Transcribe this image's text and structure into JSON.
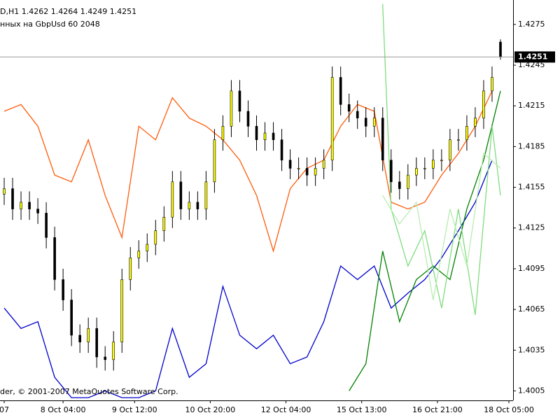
{
  "chart_data": {
    "type": "candlestick",
    "info_line": "D,H1  1.4262 1.4264 1.4249 1.4251",
    "indicator_line": "нных на GbpUsd 60 2048",
    "copyright": "der, © 2001-2007 MetaQuotes Software Corp.",
    "current_price": 1.4251,
    "candle_up": "#ffff00",
    "candle_down": "#000000",
    "wick_color": "#000000",
    "xlim": [
      -0.5,
      60.5
    ],
    "xticks": [
      {
        "value": 0,
        "label": "07"
      },
      {
        "value": 7,
        "label": "8 Oct 04:00"
      },
      {
        "value": 15.5,
        "label": "9 Oct 12:00"
      },
      {
        "value": 24.5,
        "label": "10 Oct 20:00"
      },
      {
        "value": 33.5,
        "label": "12 Oct 04:00"
      },
      {
        "value": 42.5,
        "label": "15 Oct 13:00"
      },
      {
        "value": 51.5,
        "label": "16 Oct 21:00"
      },
      {
        "value": 60,
        "label": "18 Oct 05:00"
      }
    ],
    "ylim": [
      1.3998,
      1.4293
    ],
    "yticks": [
      1.4275,
      1.4245,
      1.4215,
      1.4185,
      1.4155,
      1.4125,
      1.4095,
      1.4065,
      1.4035,
      1.4005
    ],
    "open": [
      1.415,
      1.4154,
      1.4139,
      1.4144,
      1.4139,
      1.4136,
      1.4118,
      1.4087,
      1.4072,
      1.4046,
      1.4041,
      1.4051,
      1.403,
      1.4028,
      1.4041,
      1.4087,
      1.4103,
      1.4108,
      1.4113,
      1.4123,
      1.4133,
      1.4159,
      1.4139,
      1.4144,
      1.4139,
      1.4159,
      1.419,
      1.42,
      1.4226,
      1.4211,
      1.42,
      1.419,
      1.4195,
      1.419,
      1.4175,
      1.4169,
      1.4169,
      1.4164,
      1.4169,
      1.4175,
      1.4236,
      1.4216,
      1.4211,
      1.4206,
      1.42,
      1.4206,
      1.4175,
      1.4159,
      1.4154,
      1.4164,
      1.4169,
      1.4169,
      1.4175,
      1.4175,
      1.419,
      1.419,
      1.42,
      1.4206,
      1.4226,
      1.4262
    ],
    "high": [
      1.4162,
      1.4162,
      1.4152,
      1.4152,
      1.4147,
      1.4144,
      1.4126,
      1.4095,
      1.408,
      1.4054,
      1.4059,
      1.4059,
      1.4038,
      1.4049,
      1.4095,
      1.4111,
      1.4116,
      1.4121,
      1.4131,
      1.4141,
      1.4167,
      1.4167,
      1.4152,
      1.4152,
      1.4167,
      1.4198,
      1.4208,
      1.4234,
      1.4234,
      1.4219,
      1.4208,
      1.4203,
      1.4203,
      1.4198,
      1.4183,
      1.4177,
      1.4177,
      1.4177,
      1.4183,
      1.4244,
      1.4244,
      1.4224,
      1.4219,
      1.4214,
      1.4214,
      1.4214,
      1.4183,
      1.4167,
      1.4172,
      1.4177,
      1.4177,
      1.4183,
      1.4183,
      1.4198,
      1.4198,
      1.4208,
      1.4214,
      1.4234,
      1.4244,
      1.4264
    ],
    "low": [
      1.4142,
      1.4131,
      1.4131,
      1.4131,
      1.4128,
      1.411,
      1.4079,
      1.4064,
      1.4038,
      1.4033,
      1.4033,
      1.4022,
      1.402,
      1.402,
      1.4033,
      1.4079,
      1.4095,
      1.41,
      1.4105,
      1.4115,
      1.4125,
      1.4131,
      1.4131,
      1.4131,
      1.4131,
      1.4151,
      1.4182,
      1.4192,
      1.4203,
      1.4192,
      1.4182,
      1.4182,
      1.4182,
      1.4167,
      1.4161,
      1.4161,
      1.4156,
      1.4156,
      1.4161,
      1.4167,
      1.4208,
      1.4203,
      1.4198,
      1.4192,
      1.4192,
      1.4167,
      1.4151,
      1.4146,
      1.4146,
      1.4156,
      1.4161,
      1.4161,
      1.4167,
      1.4167,
      1.4182,
      1.4182,
      1.4192,
      1.4198,
      1.4218,
      1.4249
    ],
    "close": [
      1.4154,
      1.4139,
      1.4144,
      1.4139,
      1.4136,
      1.4118,
      1.4087,
      1.4072,
      1.4046,
      1.4041,
      1.4051,
      1.403,
      1.4028,
      1.4041,
      1.4087,
      1.4103,
      1.4108,
      1.4113,
      1.4123,
      1.4133,
      1.4159,
      1.4139,
      1.4144,
      1.4139,
      1.4159,
      1.419,
      1.42,
      1.4226,
      1.4211,
      1.42,
      1.419,
      1.4195,
      1.419,
      1.4175,
      1.4169,
      1.4169,
      1.4164,
      1.4169,
      1.4175,
      1.4236,
      1.4216,
      1.4211,
      1.4206,
      1.42,
      1.4206,
      1.4175,
      1.4159,
      1.4154,
      1.4164,
      1.4169,
      1.4169,
      1.4175,
      1.4175,
      1.419,
      1.419,
      1.42,
      1.4206,
      1.4226,
      1.4236,
      1.4251
    ],
    "lines": [
      {
        "color": "#ff5a0a",
        "x": [
          0,
          2,
          4,
          6,
          8,
          10,
          12,
          14,
          16,
          18,
          20,
          22,
          24,
          26,
          28,
          30,
          32,
          34,
          36,
          38,
          40,
          42,
          44,
          46,
          48,
          50,
          52,
          54,
          56,
          58
        ],
        "values": [
          1.4211,
          1.4216,
          1.42,
          1.4164,
          1.4159,
          1.419,
          1.4149,
          1.4118,
          1.42,
          1.419,
          1.4221,
          1.4206,
          1.42,
          1.419,
          1.4175,
          1.4149,
          1.4108,
          1.4154,
          1.4169,
          1.4175,
          1.42,
          1.4216,
          1.4211,
          1.4144,
          1.4139,
          1.4144,
          1.4164,
          1.418,
          1.42,
          1.4226
        ]
      },
      {
        "color": "#0000cc",
        "x": [
          0,
          2,
          4,
          6,
          8,
          10,
          12,
          14,
          16,
          18,
          20,
          22,
          24,
          26,
          28,
          30,
          32,
          34,
          36,
          38,
          40,
          42,
          44,
          46,
          48,
          50,
          52,
          54,
          56,
          58
        ],
        "values": [
          1.4066,
          1.4051,
          1.4056,
          1.4015,
          1.4,
          1.4,
          1.4005,
          1.4,
          1.4,
          1.4005,
          1.4051,
          1.4015,
          1.4025,
          1.4082,
          1.4046,
          1.4036,
          1.4046,
          1.4025,
          1.403,
          1.4056,
          1.4097,
          1.4087,
          1.4097,
          1.4066,
          1.4077,
          1.4087,
          1.4103,
          1.4123,
          1.4144,
          1.4175
        ]
      },
      {
        "color": "#008000",
        "x": [
          41,
          43,
          45,
          47,
          49,
          51,
          53,
          55,
          57,
          59
        ],
        "values": [
          1.4005,
          1.4025,
          1.4108,
          1.4056,
          1.4087,
          1.4097,
          1.4087,
          1.4139,
          1.4175,
          1.4226
        ]
      },
      {
        "color": "#7fdc7f",
        "x": [
          45,
          46,
          48,
          50,
          52,
          54,
          56,
          58,
          59
        ],
        "values": [
          1.429,
          1.4139,
          1.4097,
          1.4123,
          1.4066,
          1.4139,
          1.4061,
          1.42,
          1.4149
        ]
      },
      {
        "color": "#b8ecb0",
        "x": [
          45,
          47,
          49,
          51,
          53,
          55,
          57,
          59
        ],
        "values": [
          1.4149,
          1.4128,
          1.4144,
          1.4072,
          1.4139,
          1.4097,
          1.418,
          1.4169
        ]
      }
    ]
  }
}
